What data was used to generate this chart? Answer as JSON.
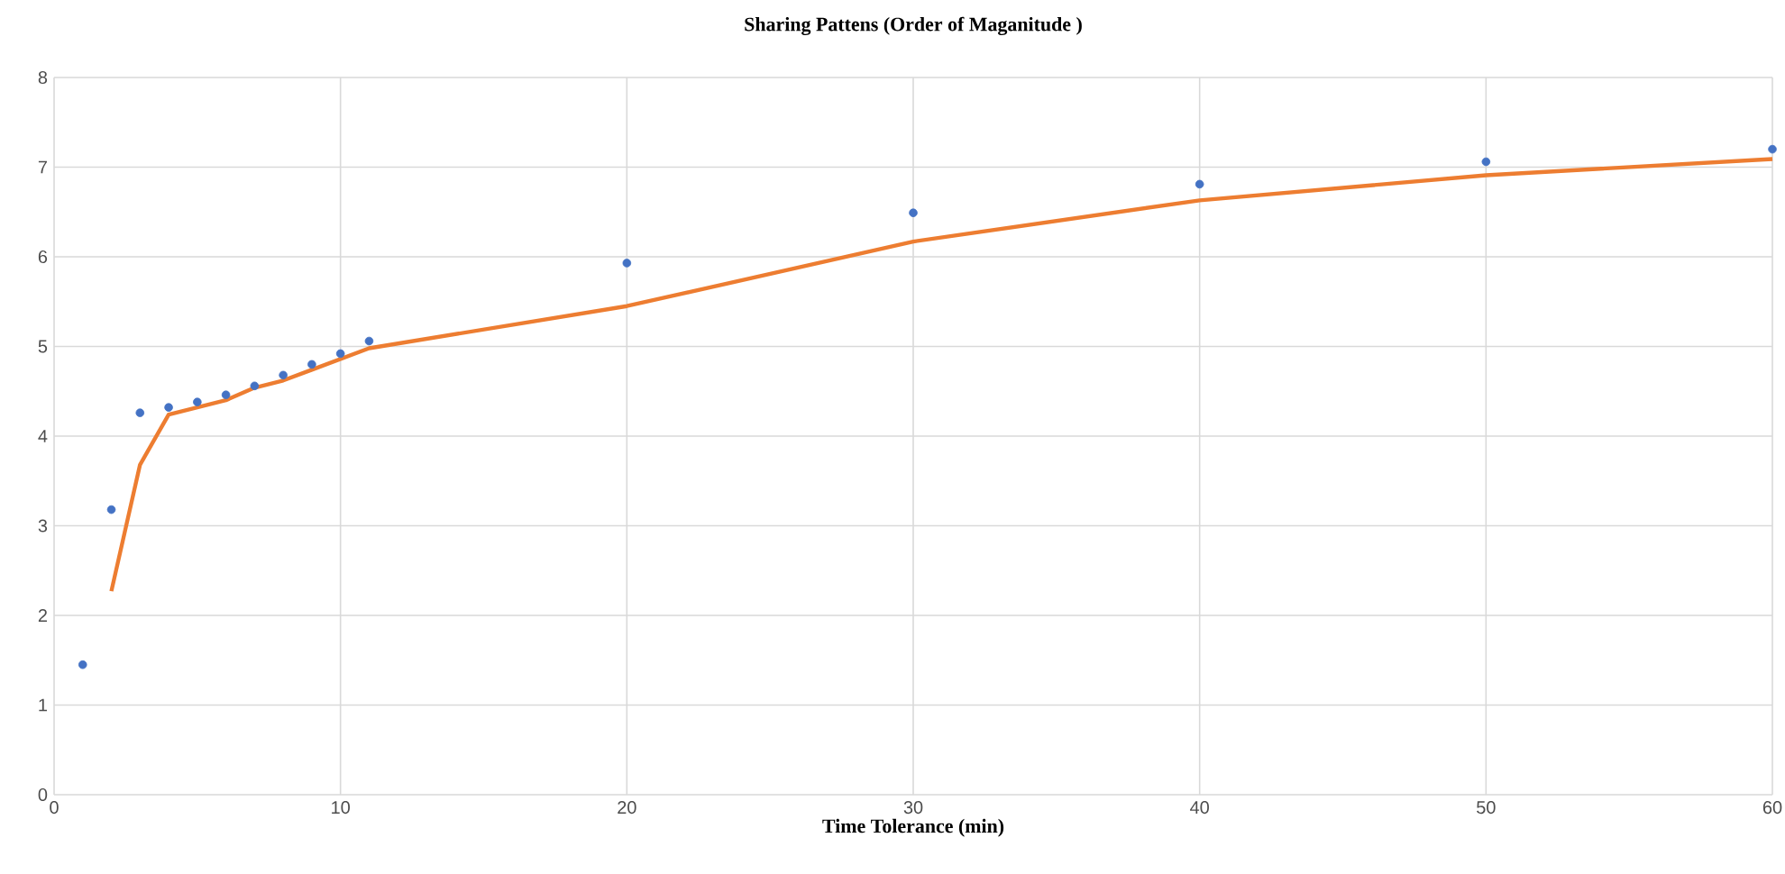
{
  "chart_data": {
    "type": "line",
    "title": "Sharing Pattens (Order of Maganitude )",
    "xlabel": "Time Tolerance (min)",
    "xlim": [
      0,
      60
    ],
    "ylim": [
      0,
      8
    ],
    "xticks": [
      0,
      10,
      20,
      30,
      40,
      50,
      60
    ],
    "yticks": [
      0,
      1,
      2,
      3,
      4,
      5,
      6,
      7,
      8
    ],
    "grid": true,
    "series": [
      {
        "type": "scatter",
        "marker": "circle",
        "color": "#4472c4",
        "x": [
          1,
          2,
          3,
          4,
          5,
          6,
          7,
          8,
          9,
          10,
          11,
          20,
          30,
          40,
          50,
          60
        ],
        "values": [
          1.45,
          3.18,
          4.26,
          4.32,
          4.38,
          4.46,
          4.56,
          4.68,
          4.8,
          4.92,
          5.06,
          5.93,
          6.49,
          6.81,
          7.06,
          7.2
        ]
      },
      {
        "marker": "none",
        "color": "#ed7d31",
        "x": [
          2,
          3,
          4,
          5,
          6,
          7,
          8,
          9,
          10,
          11,
          20,
          30,
          40,
          50,
          60
        ],
        "values": [
          2.27,
          3.68,
          4.24,
          4.32,
          4.4,
          4.54,
          4.62,
          4.74,
          4.86,
          4.98,
          5.45,
          6.17,
          6.63,
          6.91,
          7.09
        ]
      }
    ]
  }
}
